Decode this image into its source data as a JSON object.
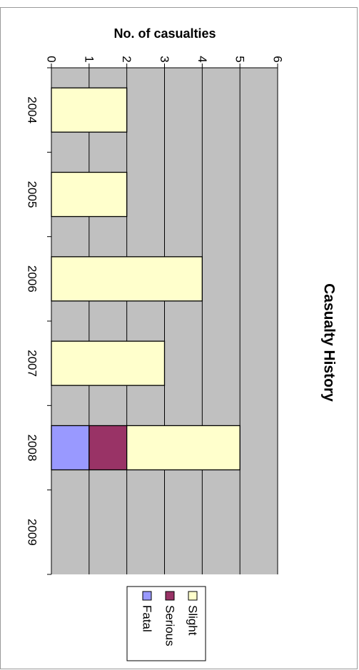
{
  "chart_data": {
    "type": "bar",
    "stacked": true,
    "orientation": "rotated-90-clockwise",
    "title": "Casualty History",
    "ylabel": "No. of casualties",
    "xlabel": "",
    "categories": [
      "2004",
      "2005",
      "2006",
      "2007",
      "2008",
      "2009"
    ],
    "ylim": [
      0,
      6
    ],
    "yticks": [
      "0",
      "1",
      "2",
      "3",
      "4",
      "5",
      "6"
    ],
    "grid": true,
    "legend_position": "bottom",
    "series": [
      {
        "name": "Fatal",
        "values": [
          0,
          0,
          0,
          0,
          1,
          0
        ],
        "color": "#9999ff"
      },
      {
        "name": "Serious",
        "values": [
          0,
          0,
          0,
          0,
          1,
          0
        ],
        "color": "#993366"
      },
      {
        "name": "Slight",
        "values": [
          2,
          2,
          4,
          3,
          3,
          0
        ],
        "color": "#ffffcc"
      }
    ],
    "plot_background": "#c0c0c0"
  }
}
